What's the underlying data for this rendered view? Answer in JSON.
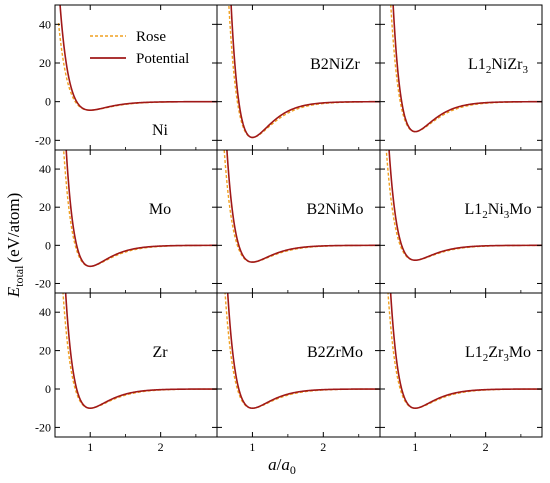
{
  "figure": {
    "ylabel_main": "E",
    "ylabel_sub": "total",
    "ylabel_unit": "(eV/atom)",
    "xlabel_main": "a",
    "xlabel_slash": "/",
    "xlabel_a0": "a",
    "xlabel_a0_sub": "0"
  },
  "legend": {
    "rose_label": "Rose",
    "potential_label": "Potential"
  },
  "colors": {
    "rose": "#f0a020",
    "potential": "#a01818",
    "grid_bg": "#ffffff"
  },
  "chart_data": [
    {
      "type": "line",
      "title": "Ni",
      "panel": "Ni",
      "x_ticks": [
        "1",
        "2"
      ],
      "y_ticks": [
        "-20",
        "0",
        "20",
        "40"
      ],
      "xlim": [
        0.5,
        2.8
      ],
      "ylim": [
        -25,
        50
      ],
      "min_energy": -4.4,
      "min_x": 1.0,
      "series": [
        {
          "name": "Rose"
        },
        {
          "name": "Potential"
        }
      ]
    },
    {
      "type": "line",
      "title": "B2NiZr",
      "panel": "B2NiZr",
      "x_ticks": [
        "1",
        "2"
      ],
      "xlim": [
        0.5,
        2.8
      ],
      "ylim": [
        -25,
        50
      ],
      "min_energy": -18.5,
      "min_x": 1.0,
      "series": [
        {
          "name": "Rose"
        },
        {
          "name": "Potential"
        }
      ]
    },
    {
      "type": "line",
      "title": "L12NiZr3",
      "panel": "L1_2NiZr_3",
      "x_ticks": [
        "1",
        "2"
      ],
      "xlim": [
        0.5,
        2.8
      ],
      "ylim": [
        -25,
        50
      ],
      "min_energy": -15.5,
      "min_x": 1.0,
      "series": [
        {
          "name": "Rose"
        },
        {
          "name": "Potential"
        }
      ]
    },
    {
      "type": "line",
      "title": "Mo",
      "panel": "Mo",
      "x_ticks": [
        "1",
        "2"
      ],
      "y_ticks": [
        "-20",
        "0",
        "20",
        "40"
      ],
      "xlim": [
        0.5,
        2.8
      ],
      "ylim": [
        -25,
        50
      ],
      "min_energy": -11.0,
      "min_x": 1.0,
      "series": [
        {
          "name": "Rose"
        },
        {
          "name": "Potential"
        }
      ]
    },
    {
      "type": "line",
      "title": "B2NiMo",
      "panel": "B2NiMo",
      "x_ticks": [
        "1",
        "2"
      ],
      "xlim": [
        0.5,
        2.8
      ],
      "ylim": [
        -25,
        50
      ],
      "min_energy": -8.8,
      "min_x": 1.0,
      "series": [
        {
          "name": "Rose"
        },
        {
          "name": "Potential"
        }
      ]
    },
    {
      "type": "line",
      "title": "L12Ni3Mo",
      "panel": "L1_2Ni_3Mo",
      "x_ticks": [
        "1",
        "2"
      ],
      "xlim": [
        0.5,
        2.8
      ],
      "ylim": [
        -25,
        50
      ],
      "min_energy": -7.8,
      "min_x": 1.0,
      "series": [
        {
          "name": "Rose"
        },
        {
          "name": "Potential"
        }
      ]
    },
    {
      "type": "line",
      "title": "Zr",
      "panel": "Zr",
      "x_ticks": [
        "1",
        "2"
      ],
      "y_ticks": [
        "-20",
        "0",
        "20",
        "40"
      ],
      "xlim": [
        0.5,
        2.8
      ],
      "ylim": [
        -25,
        50
      ],
      "min_energy": -10.0,
      "min_x": 1.0,
      "series": [
        {
          "name": "Rose"
        },
        {
          "name": "Potential"
        }
      ]
    },
    {
      "type": "line",
      "title": "B2ZrMo",
      "panel": "B2ZrMo",
      "x_ticks": [
        "1",
        "2"
      ],
      "xlim": [
        0.5,
        2.8
      ],
      "ylim": [
        -25,
        50
      ],
      "min_energy": -10.0,
      "min_x": 1.0,
      "series": [
        {
          "name": "Rose"
        },
        {
          "name": "Potential"
        }
      ]
    },
    {
      "type": "line",
      "title": "L12Zr3Mo",
      "panel": "L1_2Zr_3Mo",
      "x_ticks": [
        "1",
        "2"
      ],
      "xlim": [
        0.5,
        2.8
      ],
      "ylim": [
        -25,
        50
      ],
      "min_energy": -10.0,
      "min_x": 1.0,
      "series": [
        {
          "name": "Rose"
        },
        {
          "name": "Potential"
        }
      ]
    }
  ]
}
